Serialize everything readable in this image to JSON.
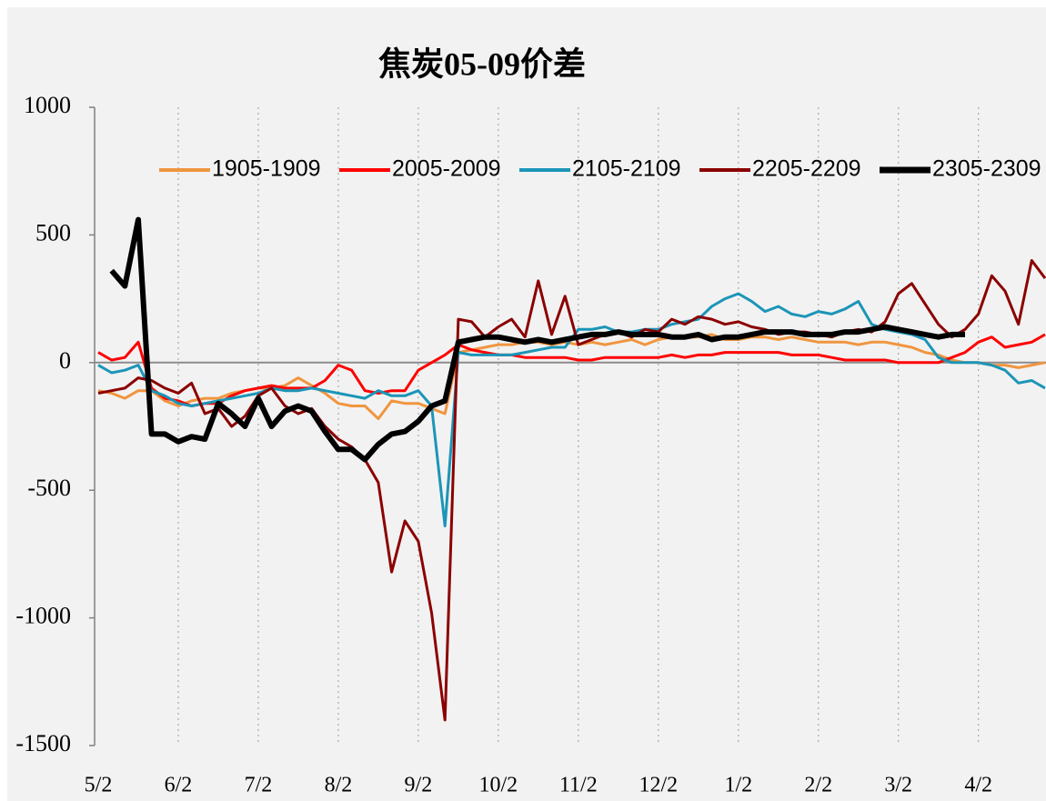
{
  "chart_data": {
    "type": "line",
    "title": "焦炭05-09价差",
    "categories": [
      "5/2",
      null,
      null,
      null,
      null,
      null,
      "6/2",
      null,
      null,
      null,
      null,
      null,
      "7/2",
      null,
      null,
      null,
      null,
      null,
      "8/2",
      null,
      null,
      null,
      null,
      null,
      "9/2",
      null,
      null,
      null,
      null,
      null,
      "10/2",
      null,
      null,
      null,
      null,
      null,
      "11/2",
      null,
      null,
      null,
      null,
      null,
      "12/2",
      null,
      null,
      null,
      null,
      null,
      "1/2",
      null,
      null,
      null,
      null,
      null,
      "2/2",
      null,
      null,
      null,
      null,
      null,
      "3/2",
      null,
      null,
      null,
      null,
      null,
      "4/2",
      null,
      null,
      null,
      null,
      null
    ],
    "series": [
      {
        "name": "1905-1909",
        "color": "#f0953f",
        "values": [
          -110,
          -120,
          -140,
          -110,
          -110,
          -150,
          -170,
          -150,
          -140,
          -140,
          -120,
          -110,
          -100,
          -100,
          -90,
          -60,
          -90,
          -120,
          -160,
          -170,
          -170,
          -220,
          -150,
          -160,
          -160,
          -180,
          -200,
          40,
          50,
          60,
          70,
          70,
          80,
          80,
          70,
          80,
          70,
          80,
          70,
          80,
          90,
          70,
          90,
          100,
          100,
          100,
          110,
          90,
          90,
          100,
          100,
          90,
          100,
          90,
          80,
          80,
          80,
          70,
          80,
          80,
          70,
          60,
          40,
          30,
          10,
          0,
          0,
          -10,
          -10,
          -20,
          -10,
          0
        ]
      },
      {
        "name": "2005-2009",
        "color": "#ff0000",
        "values": [
          40,
          10,
          20,
          80,
          -100,
          -140,
          -150,
          -170,
          -160,
          -160,
          -130,
          -110,
          -100,
          -90,
          -100,
          -100,
          -100,
          -70,
          -10,
          -30,
          -110,
          -120,
          -110,
          -110,
          -30,
          0,
          30,
          70,
          50,
          40,
          30,
          30,
          20,
          20,
          20,
          20,
          10,
          10,
          20,
          20,
          20,
          20,
          20,
          30,
          20,
          30,
          30,
          40,
          40,
          40,
          40,
          40,
          30,
          30,
          30,
          20,
          10,
          10,
          10,
          10,
          0,
          0,
          0,
          0,
          20,
          40,
          80,
          100,
          60,
          70,
          80,
          110
        ]
      },
      {
        "name": "2105-2109",
        "color": "#1b95b8",
        "values": [
          -10,
          -40,
          -30,
          -10,
          -110,
          -130,
          -160,
          -170,
          -160,
          -150,
          -140,
          -130,
          -120,
          -100,
          -110,
          -110,
          -100,
          -110,
          -120,
          -130,
          -140,
          -110,
          -130,
          -130,
          -110,
          -170,
          -640,
          40,
          30,
          30,
          30,
          30,
          40,
          50,
          60,
          60,
          130,
          130,
          140,
          120,
          120,
          130,
          130,
          150,
          160,
          170,
          220,
          250,
          270,
          240,
          200,
          220,
          190,
          180,
          200,
          190,
          210,
          240,
          150,
          130,
          120,
          110,
          90,
          20,
          0,
          0,
          0,
          -10,
          -30,
          -80,
          -70,
          -100
        ]
      },
      {
        "name": "2205-2209",
        "color": "#8b0000",
        "values": [
          -120,
          -110,
          -100,
          -60,
          -70,
          -100,
          -120,
          -80,
          -200,
          -180,
          -250,
          -210,
          -130,
          -100,
          -170,
          -200,
          -180,
          -250,
          -300,
          -330,
          -380,
          -470,
          -820,
          -620,
          -700,
          -980,
          -1400,
          170,
          160,
          100,
          140,
          170,
          100,
          320,
          110,
          260,
          70,
          90,
          110,
          120,
          100,
          130,
          120,
          170,
          150,
          180,
          170,
          150,
          160,
          140,
          130,
          110,
          120,
          120,
          110,
          100,
          120,
          130,
          120,
          160,
          270,
          310,
          230,
          150,
          100,
          130,
          190,
          340,
          280,
          150,
          400,
          330
        ]
      },
      {
        "name": "2305-2309",
        "color": "#000000",
        "values": [
          null,
          360,
          300,
          560,
          -280,
          -280,
          -310,
          -290,
          -300,
          -160,
          -200,
          -250,
          -140,
          -250,
          -190,
          -170,
          -190,
          -270,
          -340,
          -340,
          -380,
          -320,
          -280,
          -270,
          -230,
          -170,
          -150,
          80,
          90,
          100,
          100,
          90,
          80,
          90,
          80,
          90,
          100,
          110,
          110,
          120,
          110,
          110,
          110,
          100,
          100,
          110,
          90,
          100,
          100,
          110,
          120,
          120,
          120,
          110,
          110,
          110,
          120,
          120,
          130,
          140,
          130,
          120,
          110,
          100,
          110,
          110,
          null,
          null,
          null,
          null,
          null,
          null
        ]
      }
    ],
    "ylim": [
      -1500,
      1000
    ],
    "yticks": [
      1000,
      500,
      0,
      -500,
      -1000,
      -1500
    ],
    "grid": true
  }
}
